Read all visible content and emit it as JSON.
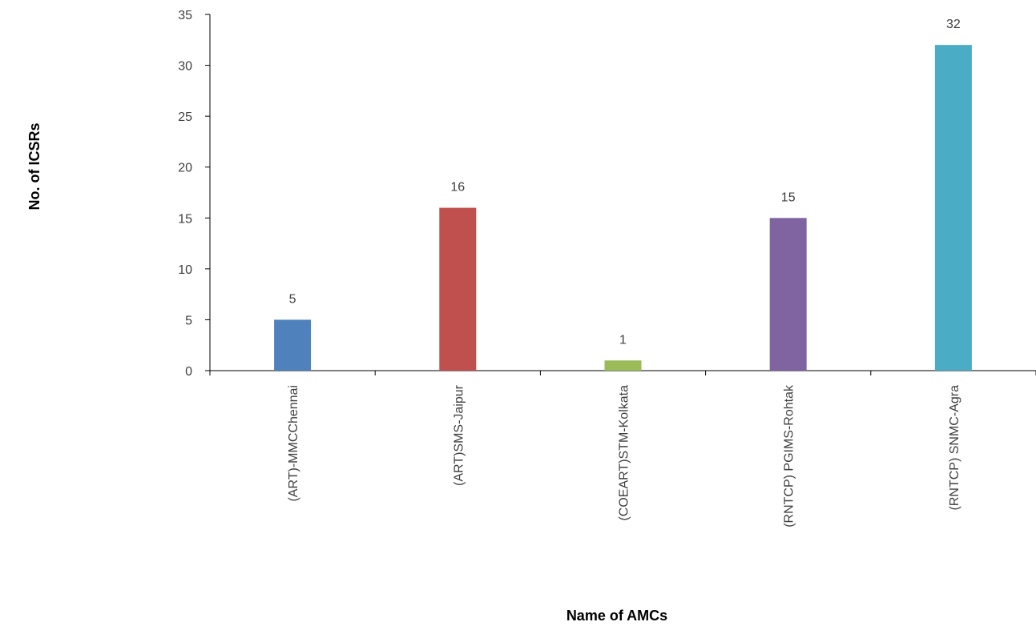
{
  "chart_data": {
    "type": "bar",
    "title": "",
    "xlabel": "Name  of AMCs",
    "ylabel": "No. of ICSRs",
    "categories": [
      "(ART)-MMCChennai",
      "(ART)SMS-Jaipur",
      "(COEART)STM-Kolkata",
      "(RNTCP) PGIMS-Rohtak",
      "(RNTCP) SNMC-Agra"
    ],
    "values": [
      5,
      16,
      1,
      15,
      32
    ],
    "colors": [
      "#4F81BD",
      "#C0504D",
      "#9BBB59",
      "#8064A2",
      "#4BACC6"
    ],
    "ylim": [
      0,
      35
    ],
    "yticks": [
      0,
      5,
      10,
      15,
      20,
      25,
      30,
      35
    ],
    "grid": false,
    "legend": "none",
    "data_labels": true
  }
}
